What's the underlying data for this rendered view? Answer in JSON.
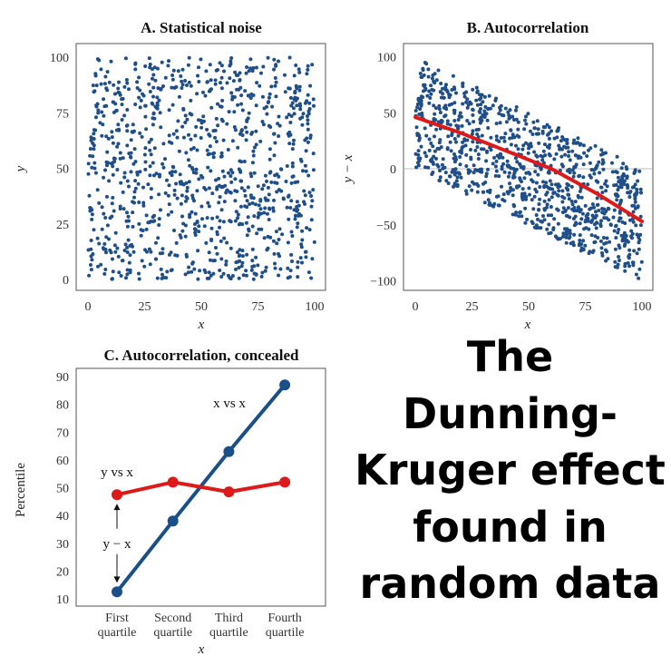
{
  "headline": {
    "lines": [
      "The",
      "Dunning-",
      "Kruger effect",
      "found in",
      "random data"
    ]
  },
  "colors": {
    "dots": "#1f4e89",
    "line_blue": "#1b4f8a",
    "line_red": "#dd1a1a"
  },
  "chart_data": [
    {
      "id": "A",
      "type": "scatter",
      "title": "A. Statistical noise",
      "xlabel": "x",
      "ylabel": "y",
      "xlim": [
        0,
        100
      ],
      "ylim": [
        0,
        100
      ],
      "xticks": [
        "0",
        "25",
        "50",
        "75",
        "100"
      ],
      "yticks": [
        "0",
        "25",
        "50",
        "75",
        "100"
      ],
      "n_points": 1000,
      "distribution": "x and y independent, uniform on [0, 100]",
      "grid": false
    },
    {
      "id": "B",
      "type": "scatter",
      "title": "B. Autocorrelation",
      "xlabel": "x",
      "ylabel": "y − x",
      "xlim": [
        0,
        100
      ],
      "ylim": [
        -100,
        100
      ],
      "xticks": [
        "0",
        "25",
        "50",
        "75",
        "100"
      ],
      "yticks": [
        "−100",
        "−50",
        "0",
        "50",
        "100"
      ],
      "n_points": 1000,
      "distribution": "same points as A, plotted as y − x against x",
      "trend_line": {
        "x": [
          0,
          20,
          40,
          60,
          80,
          100
        ],
        "y": [
          46,
          32,
          16,
          0,
          -22,
          -47
        ]
      },
      "grid": false
    },
    {
      "id": "C",
      "type": "line",
      "title": "C. Autocorrelation, concealed",
      "xlabel": "x",
      "ylabel": "Percentile",
      "ylim": [
        10,
        90
      ],
      "yticks": [
        "10",
        "20",
        "30",
        "40",
        "50",
        "60",
        "70",
        "80",
        "90"
      ],
      "categories": [
        [
          "First",
          "quartile"
        ],
        [
          "Second",
          "quartile"
        ],
        [
          "Third",
          "quartile"
        ],
        [
          "Fourth",
          "quartile"
        ]
      ],
      "series": [
        {
          "name": "x vs x",
          "values": [
            12.5,
            38,
            63,
            87
          ]
        },
        {
          "name": "y vs x",
          "values": [
            47.5,
            52,
            48.5,
            52
          ]
        }
      ],
      "annotation": {
        "text": "y − x",
        "from": 12.5,
        "to": 47.5
      },
      "grid": false
    }
  ]
}
